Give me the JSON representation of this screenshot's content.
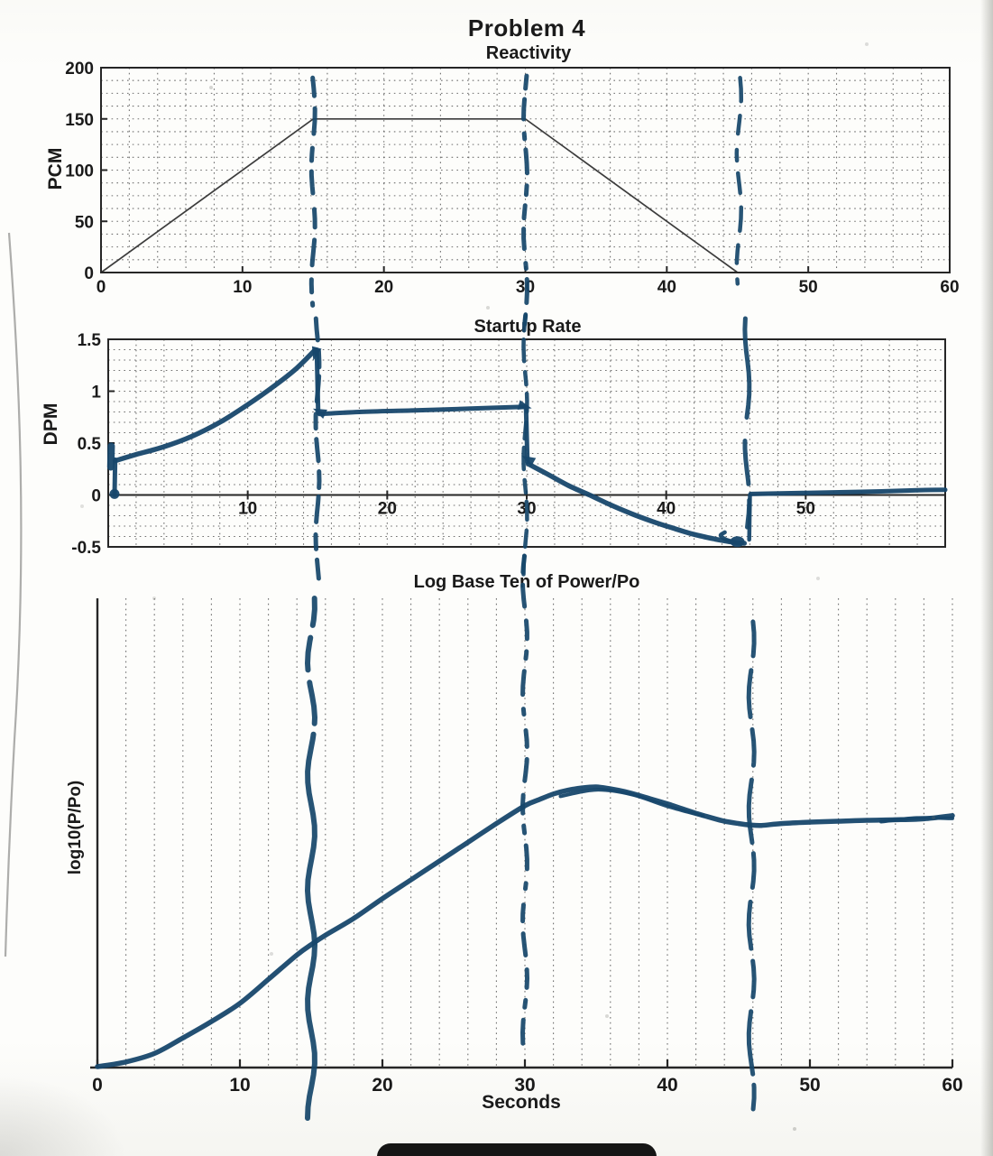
{
  "page": {
    "title": "Problem 4",
    "ink_color": "#17476b",
    "print_color": "#3c3c3c",
    "axis_color": "#262626",
    "grid_color": "#4d4d4d",
    "text_color": "#1a1a1a",
    "bottom_bar_color": "#151515"
  },
  "chart_data": [
    {
      "type": "line",
      "title": "Reactivity",
      "ylabel": "PCM",
      "xlabel": "",
      "xlim": [
        0,
        60
      ],
      "ylim": [
        0,
        200
      ],
      "xticks": [
        0,
        10,
        20,
        30,
        40,
        50,
        60
      ],
      "yticks": [
        0,
        50,
        100,
        150,
        200
      ],
      "grid": {
        "x_step": 2,
        "y_step": 12.5
      },
      "series": [
        {
          "name": "reactivity-trapezoid",
          "style": "printed",
          "points": [
            [
              0,
              0
            ],
            [
              15,
              150
            ],
            [
              30,
              150
            ],
            [
              45,
              0
            ],
            [
              60,
              0
            ]
          ]
        }
      ],
      "annotations": {
        "vlines": [
          {
            "x": 15.0,
            "f0": 0.05,
            "f1": 1.2,
            "w": 5,
            "amp": 2,
            "dash": "20 14 28 16 14 12 24 18"
          },
          {
            "x": 30.0,
            "f0": 0.04,
            "f1": 1.26,
            "w": 5,
            "amp": 2,
            "dash": "14 12 22 16 6 12 26 14 10 12"
          },
          {
            "x": 45.1,
            "f0": 0.05,
            "f1": 1.1,
            "w": 4.5,
            "amp": 2.5,
            "dash": "26 16 20 18 12 14 22 16"
          }
        ],
        "markers": []
      }
    },
    {
      "type": "line",
      "title": "Startup Rate",
      "ylabel": "DPM",
      "xlabel": "",
      "xlim": [
        0,
        60
      ],
      "ylim": [
        -0.5,
        1.5
      ],
      "xticks": [
        10,
        20,
        30,
        40,
        50
      ],
      "yticks": [
        -0.5,
        0,
        0.5,
        1,
        1.5
      ],
      "grid": {
        "x_step": 2,
        "y_step": 0.1
      },
      "series": [
        {
          "name": "axis-scribble",
          "style": "ink",
          "w": 8,
          "points": [
            [
              0.18,
              0.27
            ],
            [
              0.22,
              0.47
            ]
          ]
        },
        {
          "name": "jump-up-start",
          "style": "ink",
          "w": 5,
          "points": [
            [
              0.45,
              0.0
            ],
            [
              0.5,
              0.34
            ]
          ]
        },
        {
          "name": "rise-0-15",
          "style": "ink",
          "w": 5.5,
          "smooth": true,
          "points": [
            [
              0.5,
              0.33
            ],
            [
              2,
              0.39
            ],
            [
              4,
              0.465
            ],
            [
              6,
              0.565
            ],
            [
              8,
              0.7
            ],
            [
              10,
              0.87
            ],
            [
              12,
              1.06
            ],
            [
              13.5,
              1.22
            ],
            [
              14.85,
              1.4
            ]
          ]
        },
        {
          "name": "drop-at-15",
          "style": "ink",
          "w": 5,
          "points": [
            [
              14.95,
              1.4
            ],
            [
              15.05,
              0.79
            ]
          ]
        },
        {
          "name": "flat-15-30",
          "style": "ink",
          "w": 5,
          "smooth": true,
          "points": [
            [
              15.15,
              0.78
            ],
            [
              18,
              0.8
            ],
            [
              22,
              0.815
            ],
            [
              26,
              0.832
            ],
            [
              29.9,
              0.85
            ]
          ]
        },
        {
          "name": "drop-at-30",
          "style": "ink",
          "w": 5,
          "points": [
            [
              29.95,
              0.85
            ],
            [
              30.05,
              0.32
            ]
          ]
        },
        {
          "name": "decay-30-45",
          "style": "ink",
          "w": 5.5,
          "smooth": true,
          "points": [
            [
              30.1,
              0.3
            ],
            [
              31.5,
              0.2
            ],
            [
              33,
              0.09
            ],
            [
              34.5,
              0.0
            ],
            [
              36,
              -0.095
            ],
            [
              37.5,
              -0.18
            ],
            [
              39,
              -0.255
            ],
            [
              40.5,
              -0.32
            ],
            [
              42,
              -0.38
            ],
            [
              43.5,
              -0.425
            ],
            [
              44.8,
              -0.455
            ],
            [
              45.6,
              -0.465
            ]
          ]
        },
        {
          "name": "hook-at-bottom",
          "style": "ink",
          "w": 4.5,
          "smooth": true,
          "points": [
            [
              44.9,
              -0.455
            ],
            [
              44.3,
              -0.43
            ],
            [
              43.9,
              -0.39
            ],
            [
              44.2,
              -0.36
            ]
          ]
        },
        {
          "name": "jump-up-46",
          "style": "ink",
          "w": 4.5,
          "points": [
            [
              45.95,
              -0.43
            ],
            [
              46.0,
              0.0
            ]
          ]
        },
        {
          "name": "tail-46-60",
          "style": "ink",
          "w": 5,
          "smooth": true,
          "points": [
            [
              46.05,
              0.01
            ],
            [
              50,
              0.02
            ],
            [
              54,
              0.03
            ],
            [
              58,
              0.045
            ],
            [
              60,
              0.05
            ]
          ]
        }
      ],
      "annotations": {
        "vlines": [
          {
            "x": 15.0,
            "f0": -0.1,
            "f1": 1.18,
            "w": 5,
            "amp": 2,
            "dash": "24 12 18 10 28 14 16 12"
          },
          {
            "x": 29.9,
            "f0": -0.12,
            "f1": 1.15,
            "w": 4.5,
            "amp": 2,
            "dash": "18 10 24 12 14 10 20 12"
          },
          {
            "x": 45.8,
            "f0": -0.1,
            "f1": 0.99,
            "w": 5,
            "amp": 2.5,
            "dash": "110 26 48 18 30 14"
          }
        ],
        "markers": [
          {
            "x": 0.45,
            "y": 0.01,
            "kind": "dot",
            "r": 5.5
          },
          {
            "x": 14.85,
            "y": 1.37,
            "kind": "arrow",
            "angle": 105
          },
          {
            "x": 15.2,
            "y": 0.8,
            "kind": "arrow",
            "angle": 205
          },
          {
            "x": 29.8,
            "y": 0.855,
            "kind": "arrow",
            "angle": 15
          },
          {
            "x": 30.15,
            "y": 0.34,
            "kind": "arrow",
            "angle": 210
          },
          {
            "x": 45.1,
            "y": -0.45,
            "kind": "blob",
            "rx": 8,
            "ry": 6
          }
        ]
      }
    },
    {
      "type": "line",
      "title": "Log Base Ten of Power/Po",
      "ylabel": "log10(P/Po)",
      "xlabel": "Seconds",
      "xlim": [
        0,
        60
      ],
      "ylim": [
        0,
        1
      ],
      "xticks": [
        0,
        10,
        20,
        30,
        40,
        50,
        60
      ],
      "yticks": [],
      "grid": {
        "x_step": 2
      },
      "series": [
        {
          "name": "log-power-curve",
          "style": "ink",
          "w": 5.5,
          "smooth": true,
          "points": [
            [
              0,
              0.002
            ],
            [
              2,
              0.012
            ],
            [
              4,
              0.03
            ],
            [
              6,
              0.063
            ],
            [
              8,
              0.098
            ],
            [
              10,
              0.137
            ],
            [
              12,
              0.188
            ],
            [
              14,
              0.24
            ],
            [
              15,
              0.262
            ],
            [
              16,
              0.282
            ],
            [
              18,
              0.318
            ],
            [
              20,
              0.36
            ],
            [
              22,
              0.4
            ],
            [
              24,
              0.44
            ],
            [
              26,
              0.48
            ],
            [
              28,
              0.52
            ],
            [
              30,
              0.558
            ],
            [
              31,
              0.571
            ],
            [
              32,
              0.583
            ],
            [
              33,
              0.591
            ],
            [
              34,
              0.596
            ],
            [
              35,
              0.598
            ],
            [
              36,
              0.594
            ],
            [
              37,
              0.588
            ],
            [
              38,
              0.58
            ],
            [
              39,
              0.571
            ],
            [
              40,
              0.562
            ],
            [
              41,
              0.552
            ],
            [
              42,
              0.542
            ],
            [
              43,
              0.533
            ],
            [
              44,
              0.525
            ],
            [
              45,
              0.52
            ],
            [
              45.8,
              0.517
            ],
            [
              46.6,
              0.516
            ],
            [
              48,
              0.52
            ],
            [
              50,
              0.523
            ],
            [
              52,
              0.525
            ],
            [
              54,
              0.527
            ],
            [
              56,
              0.528
            ],
            [
              58,
              0.53
            ],
            [
              60,
              0.537
            ]
          ]
        },
        {
          "name": "overdraw-peak",
          "style": "ink",
          "w": 4,
          "smooth": true,
          "points": [
            [
              32.5,
              0.578
            ],
            [
              35,
              0.592
            ],
            [
              37.5,
              0.582
            ],
            [
              40,
              0.557
            ],
            [
              42.5,
              0.536
            ]
          ]
        },
        {
          "name": "overdraw-end",
          "style": "ink",
          "w": 4,
          "smooth": true,
          "points": [
            [
              55,
              0.524
            ],
            [
              57.5,
              0.532
            ],
            [
              60,
              0.531
            ]
          ]
        }
      ],
      "annotations": {
        "vlines": [
          {
            "x": 15.0,
            "f0": 0.0,
            "f1": 1.12,
            "w": 6,
            "amp": 4,
            "dash": "30 14 36 14 46 12 600 2"
          },
          {
            "x": 30.0,
            "f0": -0.09,
            "f1": 0.97,
            "w": 5,
            "amp": 2.5,
            "dash": "18 14 24 16 20 14 8 14 26 16 6 18"
          },
          {
            "x": 45.9,
            "f0": 0.05,
            "f1": 1.1,
            "w": 5,
            "amp": 3,
            "dash": "38 16 52 14 40 16 70 12"
          }
        ],
        "markers": []
      }
    }
  ]
}
